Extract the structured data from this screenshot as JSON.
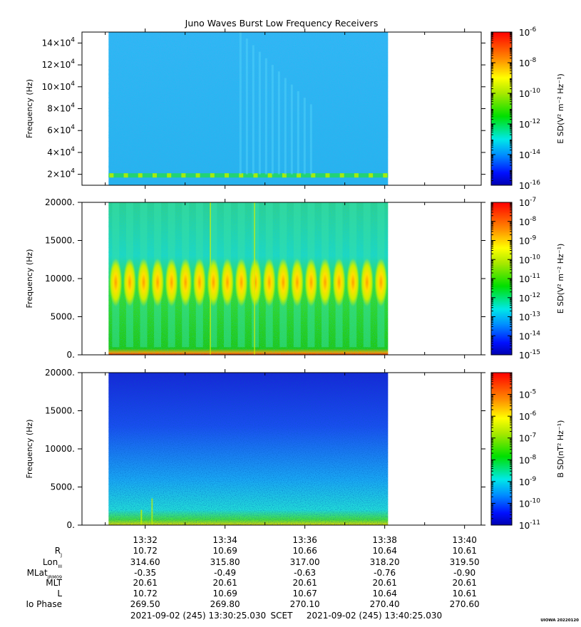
{
  "title": "Juno Waves Burst Low Frequency Receivers",
  "credit": "UIOWA 20220120",
  "time_range": {
    "start": "2021-09-02 (245) 13:30:25.030",
    "label": "SCET",
    "end": "2021-09-02 (245) 13:40:25.030"
  },
  "chart_data": [
    {
      "type": "heatmap",
      "name": "panel-1",
      "ylabel": "Frequency (Hz)",
      "yticks": [
        {
          "value": 20000,
          "base": "2×10",
          "exp": "4"
        },
        {
          "value": 40000,
          "base": "4×10",
          "exp": "4"
        },
        {
          "value": 60000,
          "base": "6×10",
          "exp": "4"
        },
        {
          "value": 80000,
          "base": "8×10",
          "exp": "4"
        },
        {
          "value": 100000,
          "base": "10×10",
          "exp": "4"
        },
        {
          "value": 120000,
          "base": "12×10",
          "exp": "4"
        },
        {
          "value": 140000,
          "base": "14×10",
          "exp": "4"
        }
      ],
      "ylim": [
        10000,
        150000
      ],
      "data_time_range": [
        "13:31:05",
        "13:38:05"
      ],
      "colorbar": {
        "label": "E SD",
        "units": "V² m⁻² Hz⁻¹",
        "scale": "log",
        "range": [
          1e-16,
          1e-06
        ],
        "ticks": [
          {
            "value": 1e-16,
            "exp": "-16"
          },
          {
            "value": 1e-14,
            "exp": "-14"
          },
          {
            "value": 1e-12,
            "exp": "-12"
          },
          {
            "value": 1e-10,
            "exp": "-10"
          },
          {
            "value": 1e-08,
            "exp": "-8"
          },
          {
            "value": 1e-06,
            "exp": "-6"
          }
        ]
      }
    },
    {
      "type": "heatmap",
      "name": "panel-2",
      "ylabel": "Frequency (Hz)",
      "yticks": [
        {
          "value": 0,
          "label": "0."
        },
        {
          "value": 5000,
          "label": "5000."
        },
        {
          "value": 10000,
          "label": "10000."
        },
        {
          "value": 15000,
          "label": "15000."
        },
        {
          "value": 20000,
          "label": "20000."
        }
      ],
      "ylim": [
        0,
        20000
      ],
      "data_time_range": [
        "13:31:05",
        "13:38:05"
      ],
      "colorbar": {
        "label": "E SD",
        "units": "V² m⁻² Hz⁻¹",
        "scale": "log",
        "range": [
          1e-15,
          1e-07
        ],
        "ticks": [
          {
            "value": 1e-15,
            "exp": "-15"
          },
          {
            "value": 1e-14,
            "exp": "-14"
          },
          {
            "value": 1e-13,
            "exp": "-13"
          },
          {
            "value": 1e-12,
            "exp": "-12"
          },
          {
            "value": 1e-11,
            "exp": "-11"
          },
          {
            "value": 1e-10,
            "exp": "-10"
          },
          {
            "value": 1e-09,
            "exp": "-9"
          },
          {
            "value": 1e-08,
            "exp": "-8"
          },
          {
            "value": 1e-07,
            "exp": "-7"
          }
        ]
      }
    },
    {
      "type": "heatmap",
      "name": "panel-3",
      "ylabel": "Frequency (Hz)",
      "yticks": [
        {
          "value": 0,
          "label": "0."
        },
        {
          "value": 5000,
          "label": "5000."
        },
        {
          "value": 10000,
          "label": "10000."
        },
        {
          "value": 15000,
          "label": "15000."
        },
        {
          "value": 20000,
          "label": "20000."
        }
      ],
      "ylim": [
        0,
        20000
      ],
      "data_time_range": [
        "13:31:05",
        "13:38:05"
      ],
      "colorbar": {
        "label": "B SD",
        "units": "nT² Hz⁻¹",
        "scale": "log",
        "range": [
          1e-11,
          0.0001
        ],
        "ticks": [
          {
            "value": 1e-11,
            "exp": "-11"
          },
          {
            "value": 1e-10,
            "exp": "-10"
          },
          {
            "value": 1e-09,
            "exp": "-9"
          },
          {
            "value": 1e-08,
            "exp": "-8"
          },
          {
            "value": 1e-07,
            "exp": "-7"
          },
          {
            "value": 1e-06,
            "exp": "-6"
          },
          {
            "value": 1e-05,
            "exp": "-5"
          }
        ]
      }
    }
  ],
  "x_axis": {
    "ticks": [
      "13:32",
      "13:34",
      "13:36",
      "13:38",
      "13:40"
    ],
    "range": [
      "13:30:25",
      "13:40:25"
    ]
  },
  "ephemeris": {
    "labels": [
      {
        "text": "R",
        "sub": "J"
      },
      {
        "text": "Lon",
        "sub": "III"
      },
      {
        "text": "MLat",
        "sub": "JRM09"
      },
      {
        "text": "MLT",
        "sub": ""
      },
      {
        "text": "L",
        "sub": ""
      },
      {
        "text": "Io Phase",
        "sub": ""
      }
    ],
    "columns": [
      [
        "10.72",
        "314.60",
        "-0.35",
        "20.61",
        "10.72",
        "269.50"
      ],
      [
        "10.69",
        "315.80",
        "-0.49",
        "20.61",
        "10.69",
        "269.80"
      ],
      [
        "10.66",
        "317.00",
        "-0.63",
        "20.61",
        "10.67",
        "270.10"
      ],
      [
        "10.64",
        "318.20",
        "-0.76",
        "20.61",
        "10.64",
        "270.40"
      ],
      [
        "10.61",
        "319.50",
        "-0.90",
        "20.61",
        "10.61",
        "270.60"
      ]
    ]
  }
}
